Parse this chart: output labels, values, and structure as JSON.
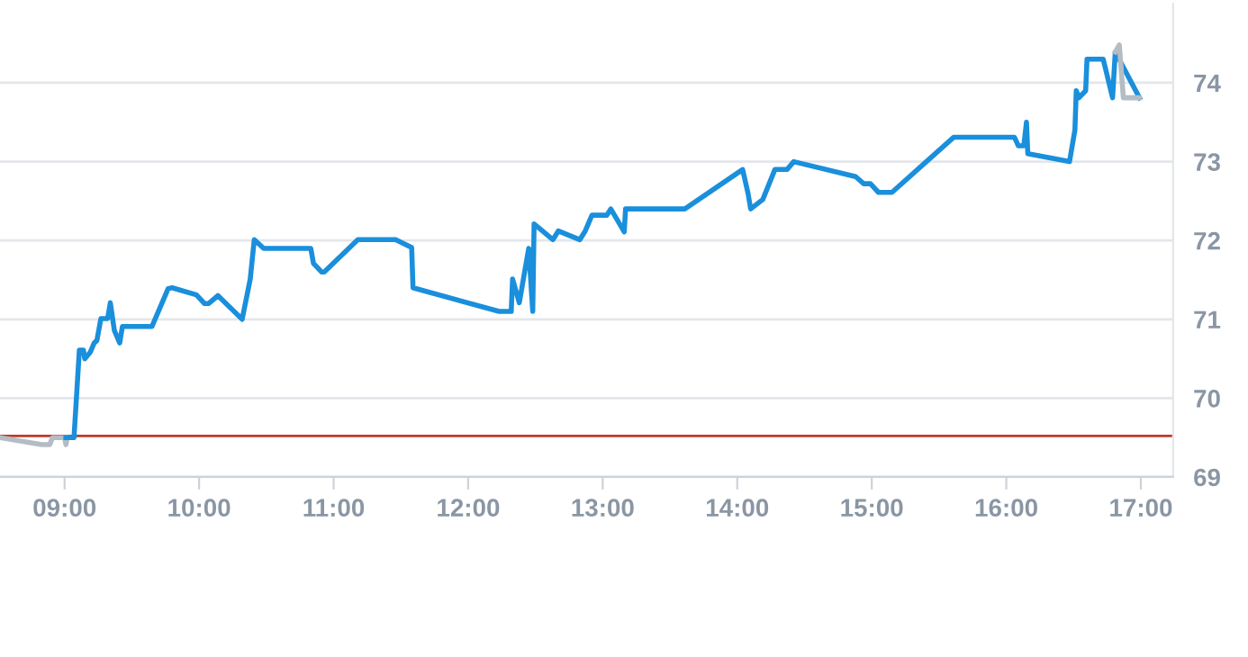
{
  "chart_data": {
    "type": "line",
    "series": [
      {
        "color": "#b4bcc4",
        "x": [
          8.52,
          8.83,
          8.89,
          8.91,
          9.0,
          9.01,
          9.02
        ],
        "values": [
          69.5,
          69.41,
          69.41,
          69.5,
          69.5,
          69.41,
          69.5
        ]
      },
      {
        "color": "#1a8fdc",
        "x": [
          9.01,
          9.07,
          9.11,
          9.14,
          9.15,
          9.19,
          9.22,
          9.24,
          9.27,
          9.32,
          9.34,
          9.37,
          9.41,
          9.43,
          9.65,
          9.77,
          9.8,
          9.98,
          10.04,
          10.07,
          10.14,
          10.32,
          10.38,
          10.41,
          10.48,
          10.83,
          10.85,
          10.91,
          10.93,
          11.18,
          11.46,
          11.58,
          11.59,
          12.23,
          12.32,
          12.33,
          12.38,
          12.45,
          12.48,
          12.49,
          12.63,
          12.67,
          12.83,
          12.87,
          12.92,
          13.03,
          13.06,
          13.16,
          13.17,
          13.61,
          14.04,
          14.08,
          14.1,
          14.19,
          14.28,
          14.37,
          14.42,
          14.88,
          14.94,
          14.99,
          15.05,
          15.15,
          15.61,
          16.06,
          16.09,
          16.13,
          16.15,
          16.16,
          16.47,
          16.51,
          16.52,
          16.54,
          16.59,
          16.6,
          16.72,
          16.79,
          16.81,
          16.99
        ],
        "values": [
          69.5,
          69.5,
          70.61,
          70.61,
          70.5,
          70.58,
          70.7,
          70.73,
          71.01,
          71.01,
          71.21,
          70.86,
          70.7,
          70.91,
          70.91,
          71.39,
          71.4,
          71.31,
          71.2,
          71.2,
          71.3,
          71.0,
          71.51,
          72.01,
          71.9,
          71.9,
          71.71,
          71.6,
          71.6,
          72.01,
          72.01,
          71.91,
          71.4,
          71.1,
          71.1,
          71.51,
          71.21,
          71.9,
          71.1,
          72.21,
          72.01,
          72.12,
          72.01,
          72.12,
          72.32,
          72.32,
          72.4,
          72.11,
          72.4,
          72.4,
          72.9,
          72.6,
          72.4,
          72.52,
          72.9,
          72.9,
          73.0,
          72.81,
          72.72,
          72.72,
          72.61,
          72.61,
          73.31,
          73.31,
          73.2,
          73.2,
          73.5,
          73.1,
          73.0,
          73.4,
          73.9,
          73.81,
          73.9,
          74.3,
          74.3,
          73.81,
          74.39,
          73.81
        ]
      },
      {
        "color": "#b4bcc4",
        "x": [
          16.81,
          16.84,
          16.87,
          16.99
        ],
        "values": [
          74.39,
          74.48,
          73.81,
          73.81
        ]
      }
    ],
    "xlim": [
      8.52,
      17.24
    ],
    "xticks": [
      {
        "value": 9,
        "label": "09:00"
      },
      {
        "value": 10,
        "label": "10:00"
      },
      {
        "value": 11,
        "label": "11:00"
      },
      {
        "value": 12,
        "label": "12:00"
      },
      {
        "value": 13,
        "label": "13:00"
      },
      {
        "value": 14,
        "label": "14:00"
      },
      {
        "value": 15,
        "label": "15:00"
      },
      {
        "value": 16,
        "label": "16:00"
      },
      {
        "value": 17,
        "label": "17:00"
      }
    ],
    "ylim": [
      69,
      75
    ],
    "yticks": [
      69,
      70,
      71,
      72,
      73,
      74
    ],
    "ref_lines": [
      {
        "axis": "y",
        "value": 69.52,
        "color": "#c0392b"
      }
    ],
    "grid": "y"
  }
}
